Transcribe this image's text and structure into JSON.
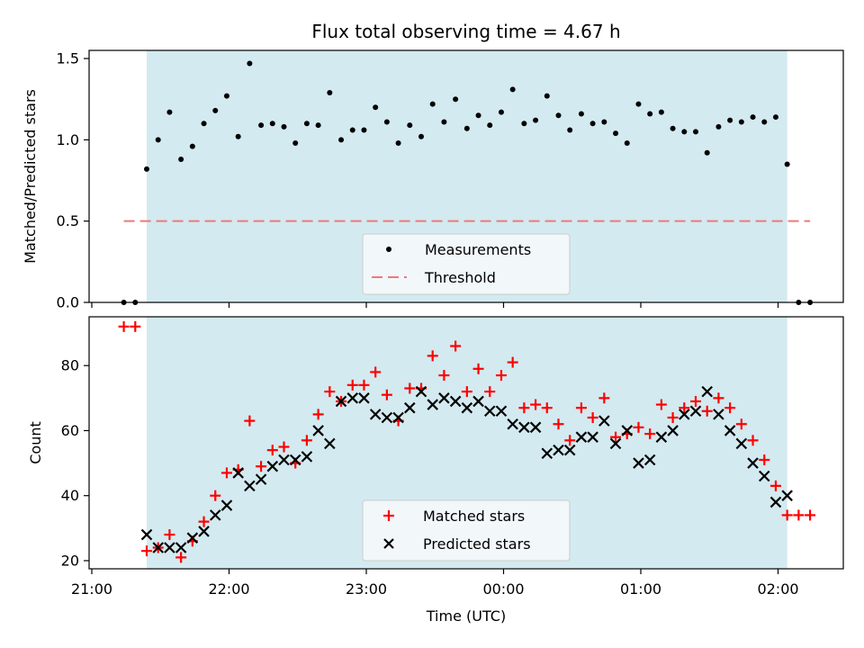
{
  "chart_data": [
    {
      "type": "scatter",
      "title": "Flux total observing time = 4.67 h",
      "xlabel": "",
      "ylabel": "Matched/Predicted stars",
      "xlim": [
        "21:00",
        "02:30"
      ],
      "ylim": [
        0,
        1.55
      ],
      "yticks": [
        "0.0",
        "0.5",
        "1.0",
        "1.5"
      ],
      "grid": false,
      "legend_placement": "lower-center",
      "shaded_interval": {
        "start": "21:24",
        "end": "02:04",
        "color": "#d3eaf0"
      },
      "series": [
        {
          "name": "Measurements",
          "marker": "dot",
          "color": "#000000",
          "x": [
            "21:14",
            "21:19",
            "21:24",
            "21:29",
            "21:34",
            "21:39",
            "21:44",
            "21:49",
            "21:54",
            "21:59",
            "22:04",
            "22:09",
            "22:14",
            "22:19",
            "22:24",
            "22:29",
            "22:34",
            "22:39",
            "22:44",
            "22:49",
            "22:54",
            "22:59",
            "23:04",
            "23:09",
            "23:14",
            "23:19",
            "23:24",
            "23:29",
            "23:34",
            "23:39",
            "23:44",
            "23:49",
            "23:54",
            "23:59",
            "00:04",
            "00:09",
            "00:14",
            "00:19",
            "00:24",
            "00:29",
            "00:34",
            "00:39",
            "00:44",
            "00:49",
            "00:54",
            "00:59",
            "01:04",
            "01:09",
            "01:14",
            "01:19",
            "01:24",
            "01:29",
            "01:34",
            "01:39",
            "01:44",
            "01:49",
            "01:54",
            "01:59",
            "02:04",
            "02:09",
            "02:14"
          ],
          "y": [
            0,
            0,
            0.82,
            1.0,
            1.17,
            0.88,
            0.96,
            1.1,
            1.18,
            1.27,
            1.02,
            1.47,
            1.09,
            1.1,
            1.08,
            0.98,
            1.1,
            1.09,
            1.29,
            1.0,
            1.06,
            1.06,
            1.2,
            1.11,
            0.98,
            1.09,
            1.02,
            1.22,
            1.11,
            1.25,
            1.07,
            1.15,
            1.09,
            1.17,
            1.31,
            1.1,
            1.12,
            1.27,
            1.15,
            1.06,
            1.16,
            1.1,
            1.11,
            1.04,
            0.98,
            1.22,
            1.16,
            1.17,
            1.07,
            1.05,
            1.05,
            0.92,
            1.08,
            1.12,
            1.11,
            1.14,
            1.11,
            1.14,
            0.85,
            0,
            0
          ]
        },
        {
          "name": "Threshold",
          "type": "line",
          "style": "dashed",
          "color": "#f07878",
          "x": [
            "21:14",
            "02:14"
          ],
          "y": [
            0.5,
            0.5
          ]
        }
      ]
    },
    {
      "type": "scatter",
      "title": "",
      "xlabel": "Time (UTC)",
      "ylabel": "Count",
      "xlim": [
        "21:00",
        "02:30"
      ],
      "ylim": [
        17.5,
        95
      ],
      "yticks": [
        "20",
        "40",
        "60",
        "80"
      ],
      "xticks": [
        "21:00",
        "22:00",
        "23:00",
        "00:00",
        "01:00",
        "02:00"
      ],
      "grid": false,
      "legend_placement": "lower-center",
      "shaded_interval": {
        "start": "21:24",
        "end": "02:04",
        "color": "#d3eaf0"
      },
      "series": [
        {
          "name": "Matched stars",
          "marker": "plus",
          "color": "#ff0000",
          "x": [
            "21:14",
            "21:19",
            "21:24",
            "21:29",
            "21:34",
            "21:39",
            "21:44",
            "21:49",
            "21:54",
            "21:59",
            "22:04",
            "22:09",
            "22:14",
            "22:19",
            "22:24",
            "22:29",
            "22:34",
            "22:39",
            "22:44",
            "22:49",
            "22:54",
            "22:59",
            "23:04",
            "23:09",
            "23:14",
            "23:19",
            "23:24",
            "23:29",
            "23:34",
            "23:39",
            "23:44",
            "23:49",
            "23:54",
            "23:59",
            "00:04",
            "00:09",
            "00:14",
            "00:19",
            "00:24",
            "00:29",
            "00:34",
            "00:39",
            "00:44",
            "00:49",
            "00:54",
            "00:59",
            "01:04",
            "01:09",
            "01:14",
            "01:19",
            "01:24",
            "01:29",
            "01:34",
            "01:39",
            "01:44",
            "01:49",
            "01:54",
            "01:59",
            "02:04",
            "02:09",
            "02:14"
          ],
          "y": [
            92,
            92,
            23,
            24,
            28,
            21,
            26,
            32,
            40,
            47,
            48,
            63,
            49,
            54,
            55,
            50,
            57,
            65,
            72,
            69,
            74,
            74,
            78,
            71,
            63,
            73,
            73,
            83,
            77,
            86,
            72,
            79,
            72,
            77,
            81,
            67,
            68,
            67,
            62,
            57,
            67,
            64,
            70,
            58,
            59,
            61,
            59,
            68,
            64,
            67,
            69,
            66,
            70,
            67,
            62,
            57,
            51,
            43,
            34,
            34,
            34
          ]
        },
        {
          "name": "Predicted stars",
          "marker": "x",
          "color": "#000000",
          "x": [
            "21:24",
            "21:29",
            "21:34",
            "21:39",
            "21:44",
            "21:49",
            "21:54",
            "21:59",
            "22:04",
            "22:09",
            "22:14",
            "22:19",
            "22:24",
            "22:29",
            "22:34",
            "22:39",
            "22:44",
            "22:49",
            "22:54",
            "22:59",
            "23:04",
            "23:09",
            "23:14",
            "23:19",
            "23:24",
            "23:29",
            "23:34",
            "23:39",
            "23:44",
            "23:49",
            "23:54",
            "23:59",
            "00:04",
            "00:09",
            "00:14",
            "00:19",
            "00:24",
            "00:29",
            "00:34",
            "00:39",
            "00:44",
            "00:49",
            "00:54",
            "00:59",
            "01:04",
            "01:09",
            "01:14",
            "01:19",
            "01:24",
            "01:29",
            "01:34",
            "01:39",
            "01:44",
            "01:49",
            "01:54",
            "01:59",
            "02:04"
          ],
          "y": [
            28,
            24,
            24,
            24,
            27,
            29,
            34,
            37,
            47,
            43,
            45,
            49,
            51,
            51,
            52,
            60,
            56,
            69,
            70,
            70,
            65,
            64,
            64,
            67,
            72,
            68,
            70,
            69,
            67,
            69,
            66,
            66,
            62,
            61,
            61,
            53,
            54,
            54,
            58,
            58,
            63,
            56,
            60,
            50,
            51,
            58,
            60,
            65,
            66,
            72,
            65,
            60,
            56,
            50,
            46,
            38,
            40
          ]
        }
      ]
    }
  ]
}
